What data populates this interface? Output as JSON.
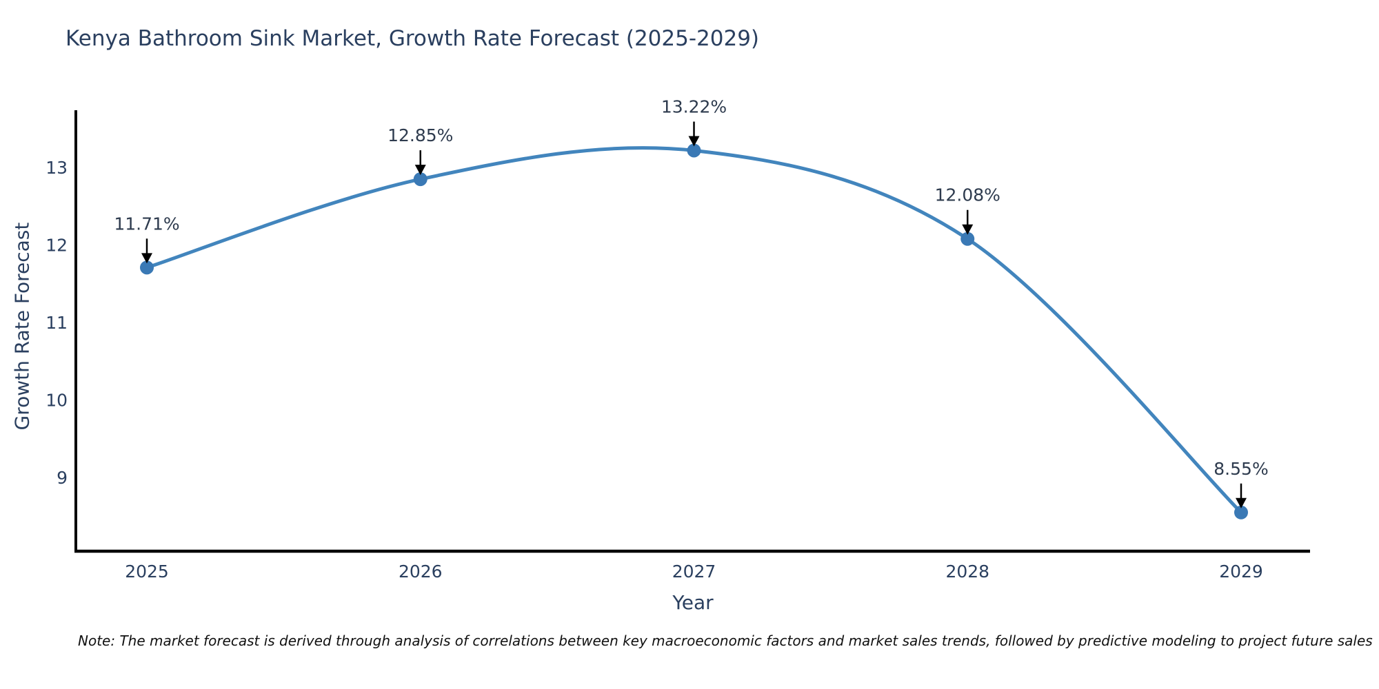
{
  "chart_data": {
    "type": "line",
    "title": "Kenya Bathroom Sink Market, Growth Rate Forecast (2025-2029)",
    "xlabel": "Year",
    "ylabel": "Growth Rate Forecast",
    "x": [
      2025,
      2026,
      2027,
      2028,
      2029
    ],
    "values": [
      11.71,
      12.85,
      13.22,
      12.08,
      8.55
    ],
    "point_labels": [
      "11.71%",
      "12.85%",
      "13.22%",
      "12.08%",
      "8.55%"
    ],
    "x_tick_labels": [
      "2025",
      "2026",
      "2027",
      "2028",
      "2029"
    ],
    "y_ticks": [
      9,
      10,
      11,
      12,
      13
    ],
    "ylim": [
      8.05,
      13.74
    ],
    "grid": false,
    "legend_position": "none",
    "line_shape": "spline",
    "colors": {
      "line": "#4285bd",
      "marker": "#3a79b5",
      "axis": "#000000",
      "arrow": "#000000",
      "text": "#2a3f5f"
    },
    "note": "Note: The market forecast is derived through analysis of correlations between key macroeconomic factors and market sales trends, followed by predictive modeling to project future sales"
  }
}
